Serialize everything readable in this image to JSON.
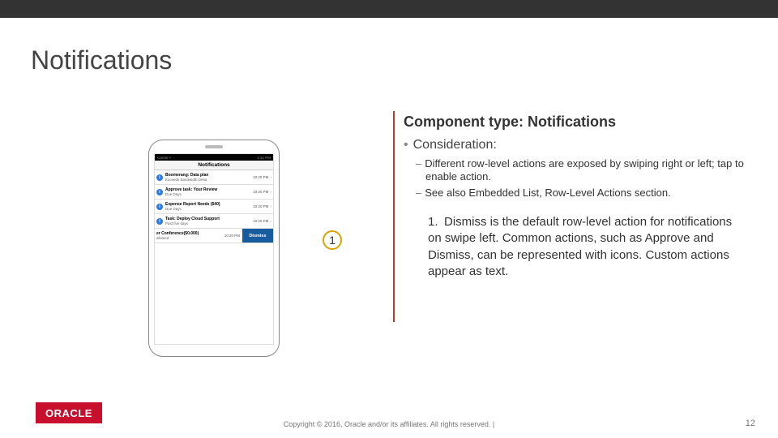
{
  "slide": {
    "title": "Notifications",
    "page_number": "12",
    "copyright": "Copyright © 2016, Oracle and/or its affiliates. All rights reserved.  |",
    "logo_text": "ORACLE",
    "colors": {
      "top_bar": "#333333",
      "accent_bar": "#c0392b",
      "logo_bg": "#c8102e",
      "callout_border": "#d6a400"
    }
  },
  "content": {
    "component_type_label": "Component type: Notifications",
    "consideration_label": "Consideration:",
    "consideration_bullets": [
      "Different row-level actions are exposed by swiping right or left; tap to enable action.",
      "See also Embedded List, Row-Level Actions section."
    ],
    "numbered": [
      "Dismiss is the default row-level action for notifications on swipe left. Common actions, such as Approve and Dismiss, can be represented with icons. Custom actions appear as text."
    ],
    "callouts": {
      "c1": "1"
    }
  },
  "phone": {
    "status": {
      "carrier": "Carrier ▪",
      "time": "4:21 PM"
    },
    "header": "Notifications",
    "dismiss_label": "Dismiss",
    "rows": [
      {
        "title": "Boomerang: Data plan",
        "subtitle": "Exceeds Bandwidth Delta",
        "time": "10:20 PM"
      },
      {
        "title": "Approve task: Your Review",
        "subtitle": "Due Days",
        "time": "10:20 PM"
      },
      {
        "title": "Expense Report Needs ($40)",
        "subtitle": "Due Days",
        "time": "10:20 PM"
      },
      {
        "title": "Task: Deploy Cloud Support",
        "subtitle": "Past five days",
        "time": "10:20 PM"
      }
    ],
    "swiped_row": {
      "title": "er Conference($0.000)",
      "subtitle": "allowed",
      "time": "10:20 PM"
    }
  }
}
